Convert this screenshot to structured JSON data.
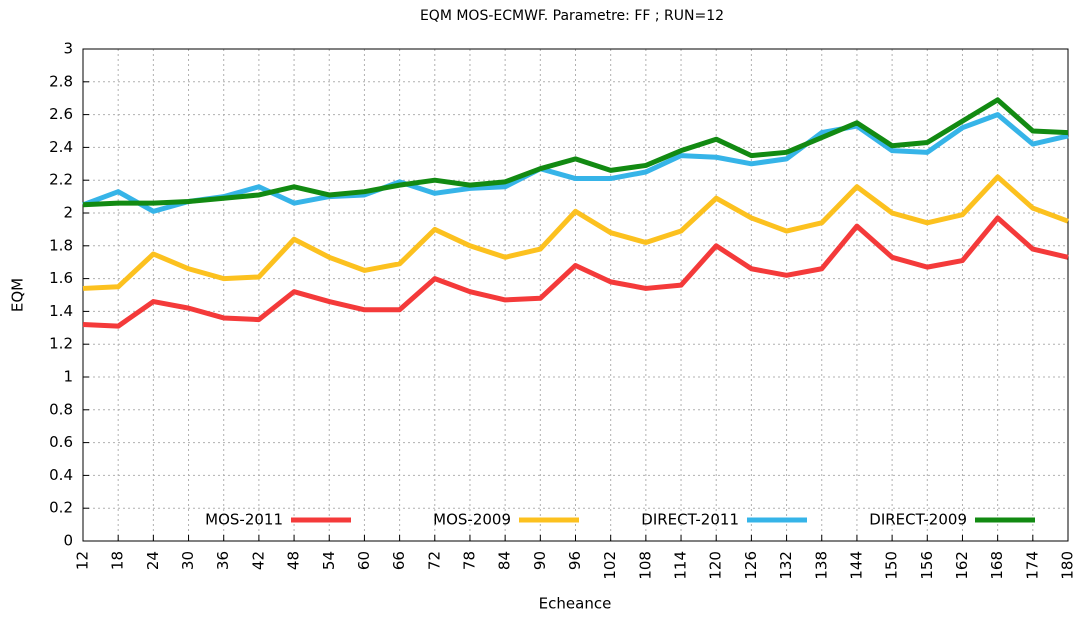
{
  "chart_data": {
    "type": "line",
    "title": "EQM MOS-ECMWF. Parametre: FF ; RUN=12",
    "x_label": "Echeance",
    "y_label": "EQM",
    "x": [
      12,
      18,
      24,
      30,
      36,
      42,
      48,
      54,
      60,
      66,
      72,
      78,
      84,
      90,
      96,
      102,
      108,
      114,
      120,
      126,
      132,
      138,
      144,
      150,
      156,
      162,
      168,
      174,
      180
    ],
    "xlim": [
      12,
      180
    ],
    "xticks": [
      12,
      18,
      24,
      30,
      36,
      42,
      48,
      54,
      60,
      66,
      72,
      78,
      84,
      90,
      96,
      102,
      108,
      114,
      120,
      126,
      132,
      138,
      144,
      150,
      156,
      162,
      168,
      174,
      180
    ],
    "ylim": [
      0,
      3
    ],
    "yticks": [
      0,
      0.2,
      0.4,
      0.6,
      0.8,
      1,
      1.2,
      1.4,
      1.6,
      1.8,
      2,
      2.2,
      2.4,
      2.6,
      2.8,
      3
    ],
    "grid": true,
    "legend": "bottom",
    "series": [
      {
        "name": "MOS-2011",
        "color": "#f43a3a",
        "values": [
          1.32,
          1.31,
          1.46,
          1.42,
          1.36,
          1.35,
          1.52,
          1.46,
          1.41,
          1.41,
          1.6,
          1.52,
          1.47,
          1.48,
          1.68,
          1.58,
          1.54,
          1.56,
          1.8,
          1.66,
          1.62,
          1.66,
          1.92,
          1.73,
          1.67,
          1.71,
          1.97,
          1.78,
          1.73
        ]
      },
      {
        "name": "MOS-2009",
        "color": "#fcc11f",
        "values": [
          1.54,
          1.55,
          1.75,
          1.66,
          1.6,
          1.61,
          1.84,
          1.73,
          1.65,
          1.69,
          1.9,
          1.8,
          1.73,
          1.78,
          2.01,
          1.88,
          1.82,
          1.89,
          2.09,
          1.97,
          1.89,
          1.94,
          2.16,
          2.0,
          1.94,
          1.99,
          2.22,
          2.03,
          1.95
        ]
      },
      {
        "name": "DIRECT-2011",
        "color": "#36b4e8",
        "values": [
          2.05,
          2.13,
          2.01,
          2.07,
          2.1,
          2.16,
          2.06,
          2.1,
          2.11,
          2.19,
          2.12,
          2.15,
          2.16,
          2.27,
          2.21,
          2.21,
          2.25,
          2.35,
          2.34,
          2.3,
          2.33,
          2.49,
          2.53,
          2.38,
          2.37,
          2.52,
          2.6,
          2.42,
          2.47
        ]
      },
      {
        "name": "DIRECT-2009",
        "color": "#128a12",
        "values": [
          2.05,
          2.06,
          2.06,
          2.07,
          2.09,
          2.11,
          2.16,
          2.11,
          2.13,
          2.17,
          2.2,
          2.17,
          2.19,
          2.27,
          2.33,
          2.26,
          2.29,
          2.38,
          2.45,
          2.35,
          2.37,
          2.46,
          2.55,
          2.41,
          2.43,
          2.56,
          2.69,
          2.5,
          2.49
        ]
      }
    ]
  }
}
